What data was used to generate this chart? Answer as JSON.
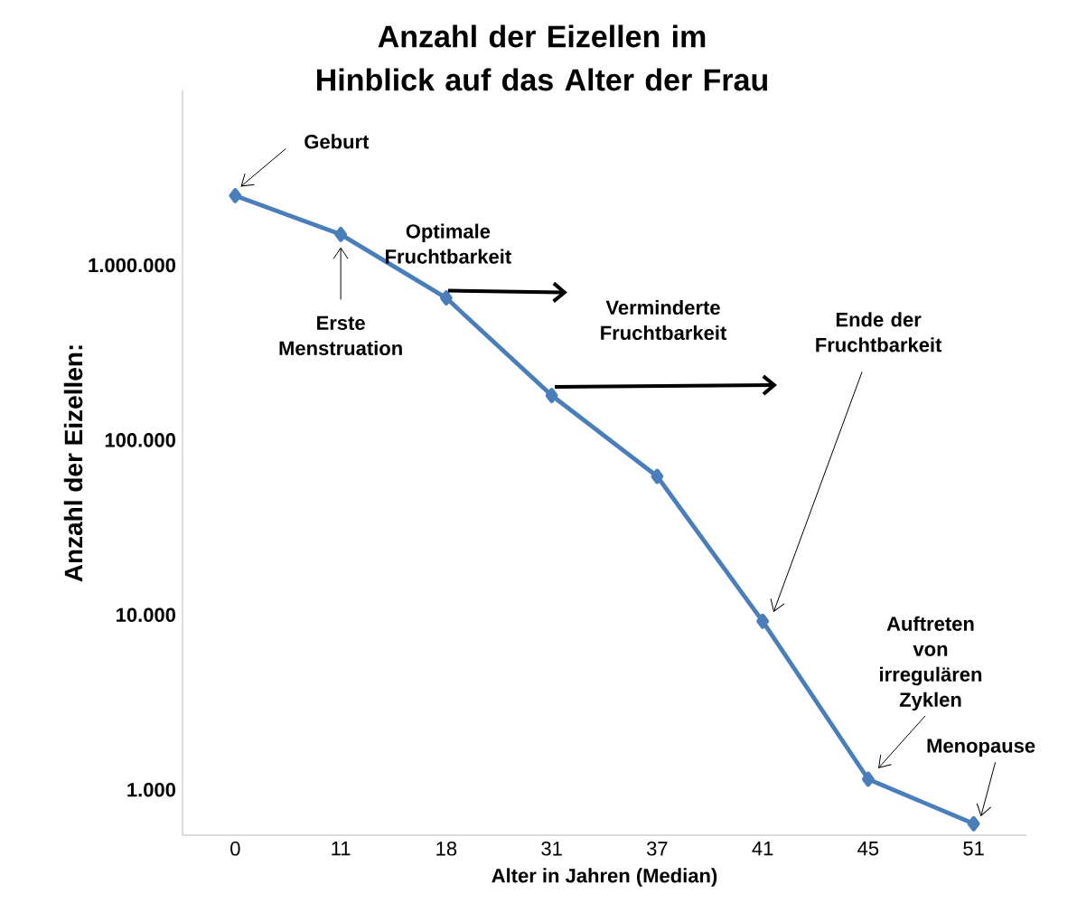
{
  "chart_data": {
    "type": "line",
    "title": "Anzahl der Eizellen im Hinblick auf das Alter der Frau",
    "xlabel": "Alter in Jahren (Median)",
    "ylabel": "Anzahl der Eizellen:",
    "categories": [
      "0",
      "11",
      "18",
      "31",
      "37",
      "41",
      "45",
      "51"
    ],
    "series": [
      {
        "color": "#4a7ebb",
        "values": [
          2500000,
          1500000,
          650000,
          180000,
          62000,
          9200,
          1150,
          640
        ]
      }
    ],
    "log": "y",
    "ylim": [
      550,
      10000000
    ],
    "yticks": [
      {
        "value": 1000,
        "label": "1.000"
      },
      {
        "value": 10000,
        "label": "10.000"
      },
      {
        "value": 100000,
        "label": "100.000"
      },
      {
        "value": 1000000,
        "label": "1.000.000"
      }
    ],
    "marker": "diamond",
    "line_style": "solid",
    "grid": false,
    "annotations": [
      {
        "text": "Geburt",
        "x": "0",
        "y": 2500000
      },
      {
        "text": "Erste Menstruation",
        "x": "11",
        "y": 1500000
      },
      {
        "text": "Optimale Fruchtbarkeit",
        "x": "18",
        "y": 650000
      },
      "Verminderte Fruchtbarkeit",
      {
        "text": "Ende der Fruchtbarkeit",
        "x": "41",
        "y": 9200
      },
      "Auftreten von irregulären Zyklen",
      {
        "text": "Menopause",
        "x": "51",
        "y": 640
      }
    ]
  }
}
